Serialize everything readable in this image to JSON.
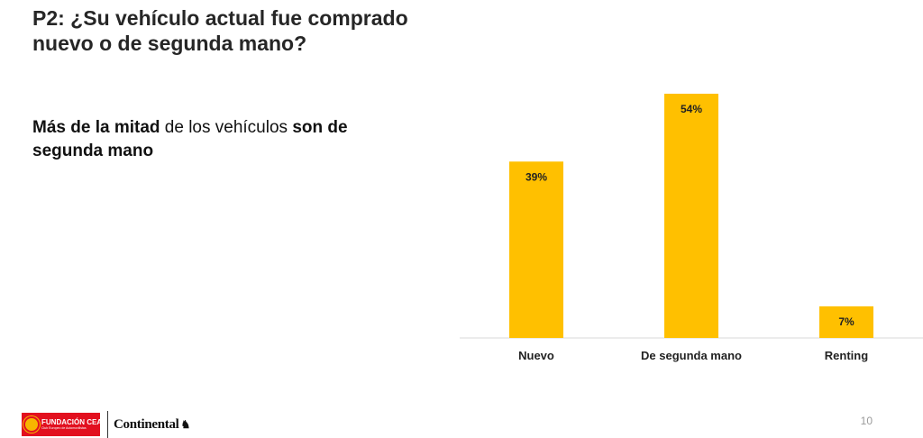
{
  "slide": {
    "title": "P2: ¿Su vehículo actual fue comprado nuevo o de segunda mano?",
    "subtitle_parts": {
      "bold1": "Más de la mitad",
      "regular": " de los vehículos ",
      "bold2": "son de segunda mano"
    },
    "page_number": "10"
  },
  "footer": {
    "fcea_name": "FUNDACIÓN CEA",
    "fcea_tagline": "Club Europeo de Automovilistas",
    "continental": "Continental"
  },
  "chart_data": {
    "type": "bar",
    "categories": [
      "Nuevo",
      "De segunda mano",
      "Renting"
    ],
    "values": [
      39,
      54,
      7
    ],
    "data_labels": [
      "39%",
      "54%",
      "7%"
    ],
    "unit": "%",
    "ylim": [
      0,
      54
    ],
    "grid": false,
    "legend": "none",
    "bar_color": "#FFC000"
  },
  "colors": {
    "bar": "#FFC000",
    "brand_red": "#E2101F"
  }
}
